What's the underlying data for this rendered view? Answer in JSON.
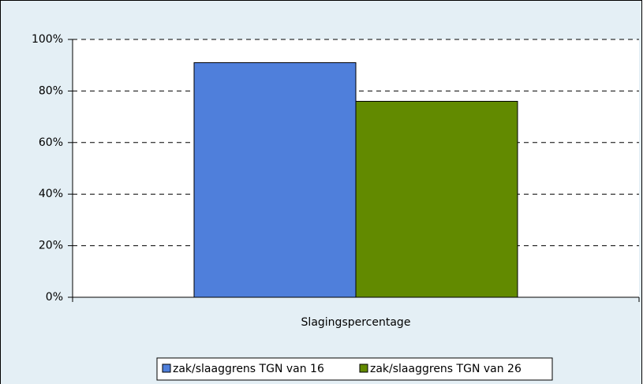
{
  "chart_data": {
    "type": "bar",
    "categories": [
      "Slagingspercentage"
    ],
    "series": [
      {
        "name": "zak/slaaggrens TGN van 16",
        "color": "#4f7fdb",
        "values": [
          91
        ]
      },
      {
        "name": "zak/slaaggrens TGN van 26",
        "color": "#628a00",
        "values": [
          76
        ]
      }
    ],
    "ylim": [
      0,
      100
    ],
    "yticks": [
      {
        "value": 0,
        "label": "0%"
      },
      {
        "value": 20,
        "label": "20%"
      },
      {
        "value": 40,
        "label": "40%"
      },
      {
        "value": 60,
        "label": "60%"
      },
      {
        "value": 80,
        "label": "80%"
      },
      {
        "value": 100,
        "label": "100%"
      }
    ],
    "grid": true,
    "legend": "bottom"
  }
}
